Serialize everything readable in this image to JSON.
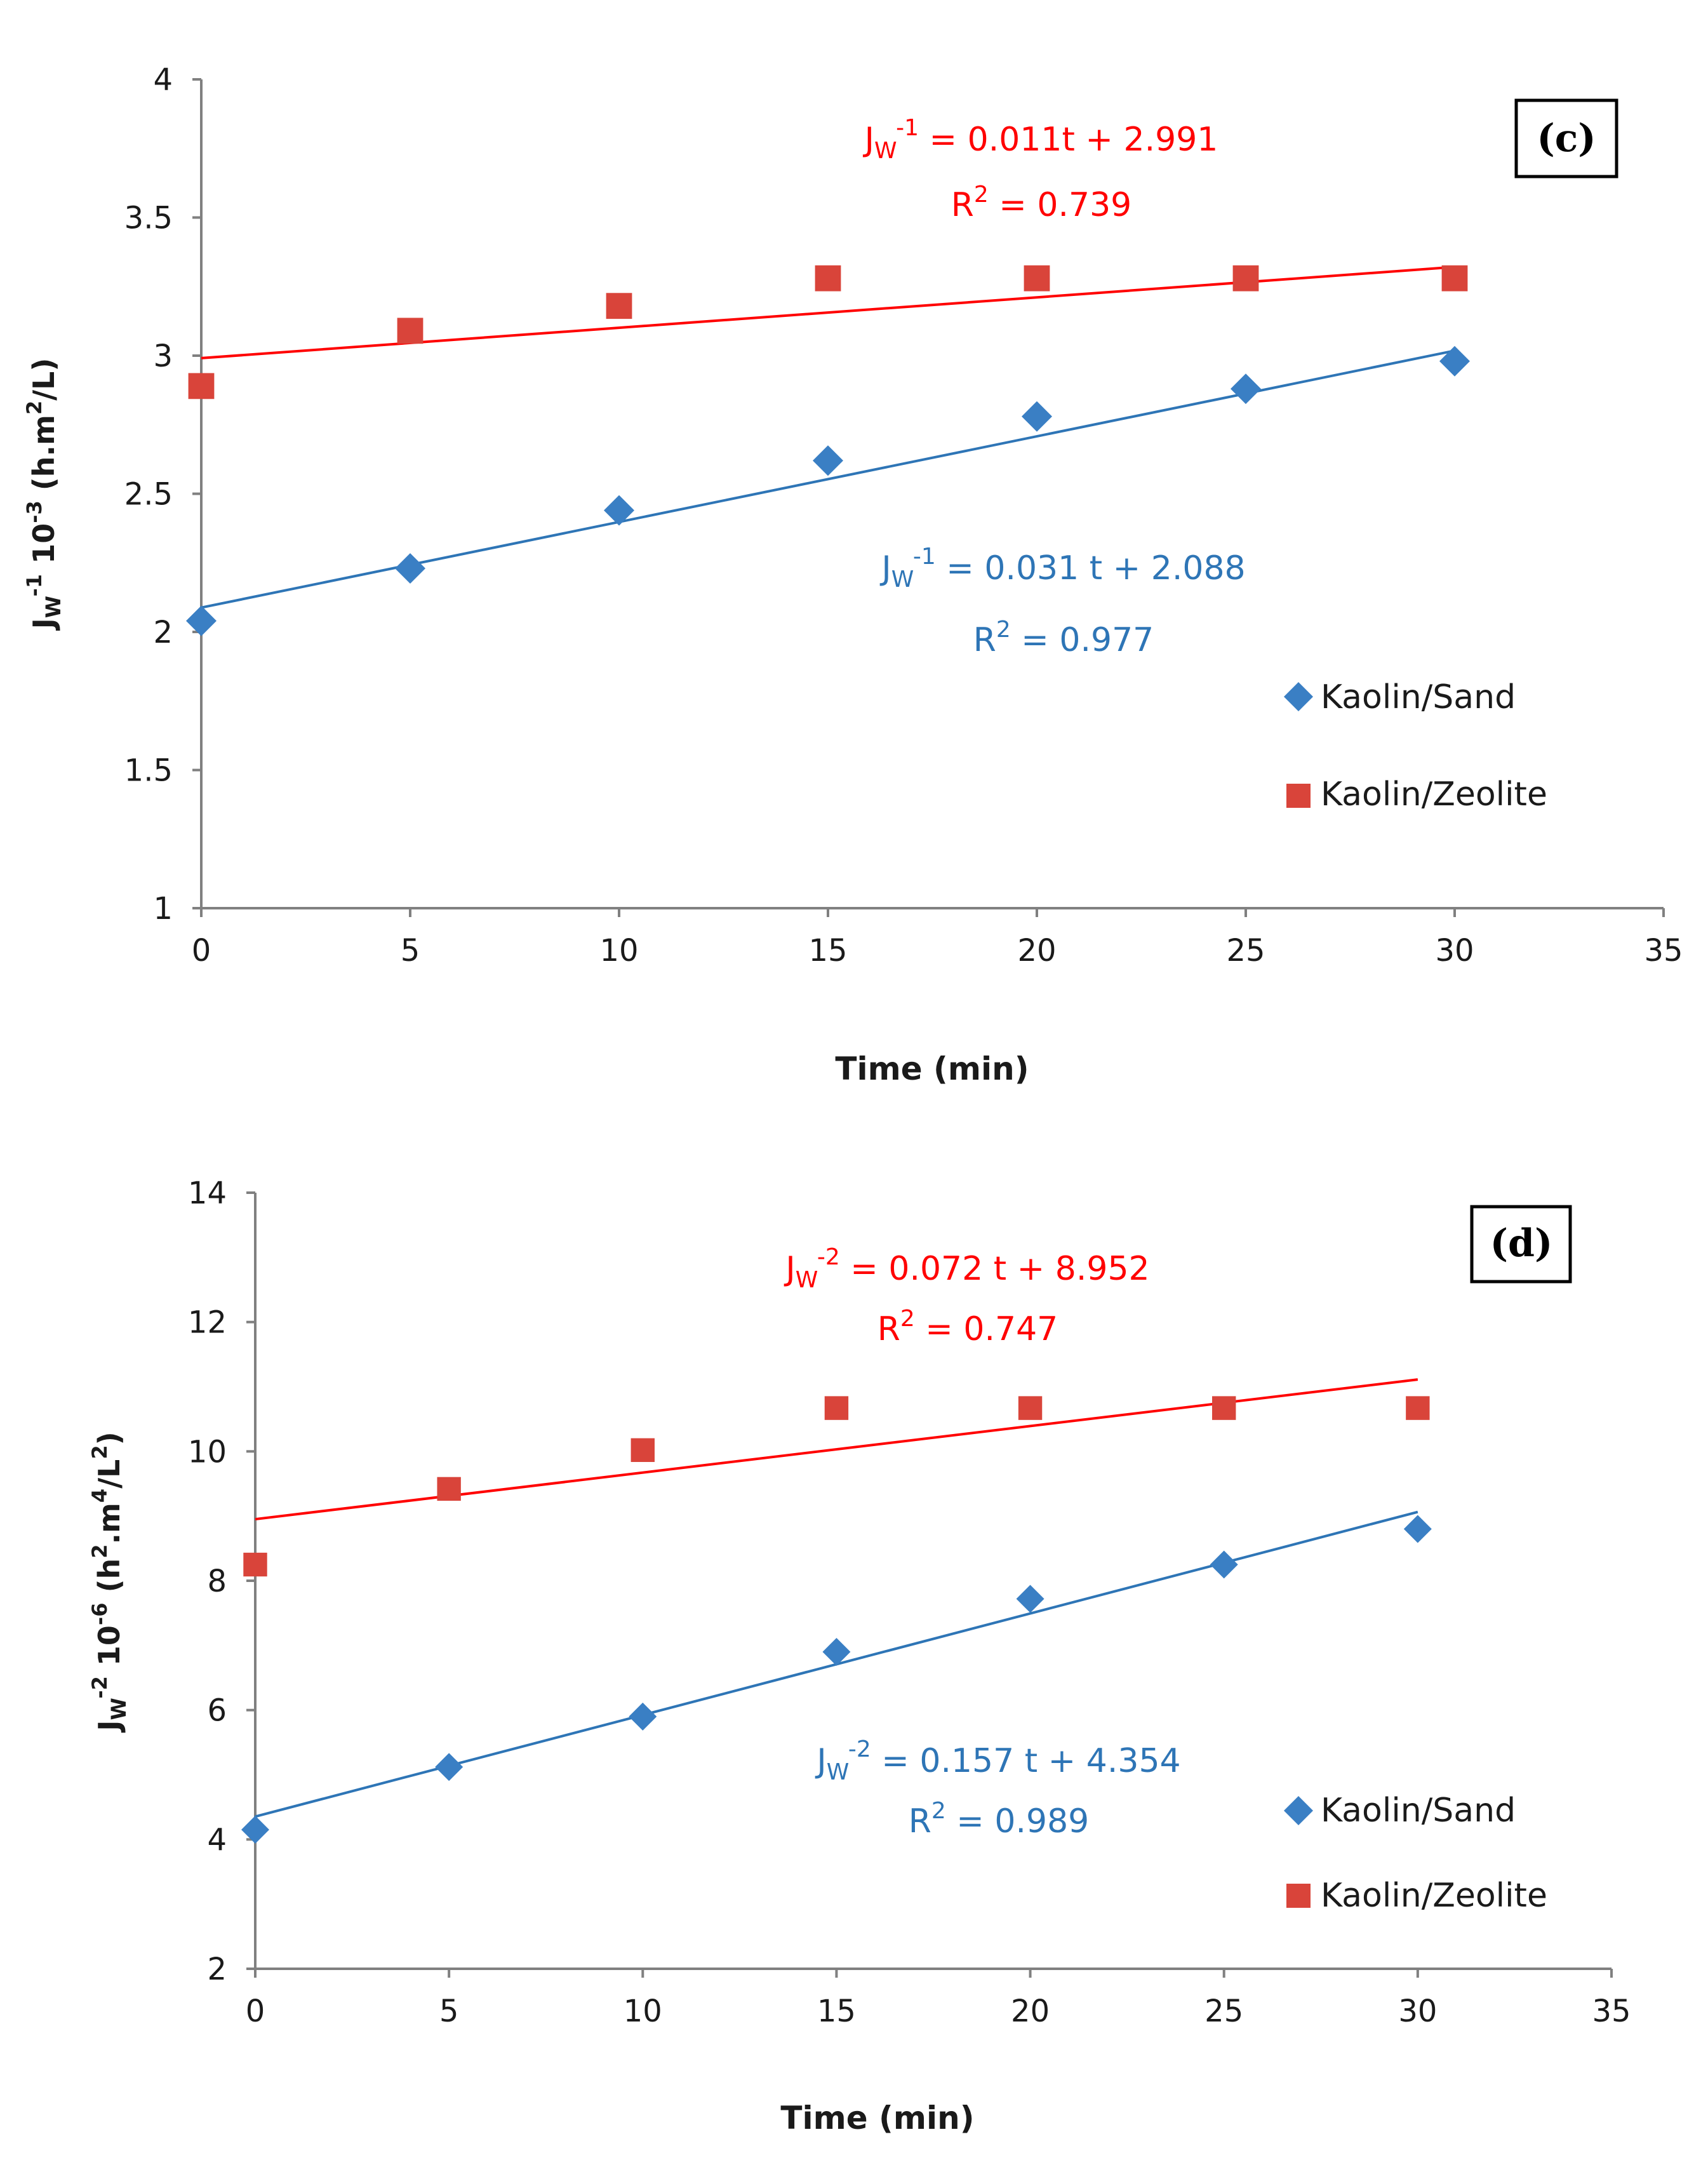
{
  "colors": {
    "sand": "#2E75B6",
    "sand_marker": "#3A7FC4",
    "zeolite": "#FF0000",
    "zeolite_marker": "#D9443A",
    "axis": "#808080",
    "text": "#1a1a1a"
  },
  "chart_data": [
    {
      "type": "scatter",
      "panel_label": "(c)",
      "xlabel": "Time (min)",
      "ylabel": {
        "a": "J",
        "a_sub": "W",
        "b": "-1",
        "c": " 10",
        "d": "-3",
        "e": " (h.m",
        "f": "2",
        "g": "/L)"
      },
      "xlim": [
        0,
        35
      ],
      "ylim": [
        1,
        4
      ],
      "xticks": [
        "0",
        "5",
        "10",
        "15",
        "20",
        "25",
        "30",
        "35"
      ],
      "yticks": [
        "1",
        "1.5",
        "2",
        "2.5",
        "3",
        "3.5",
        "4"
      ],
      "series": [
        {
          "name": "Kaolin/Sand",
          "marker": "diamond",
          "x": [
            0,
            5,
            10,
            15,
            20,
            25,
            30
          ],
          "y": [
            2.04,
            2.23,
            2.44,
            2.62,
            2.78,
            2.88,
            2.98
          ],
          "fit": {
            "slope": 0.031,
            "intercept": 2.088
          },
          "equation": {
            "a": "J",
            "a_sub": "W",
            "sup": "-1",
            "rest": " = 0.031 t + 2.088"
          },
          "r2": {
            "a": "R",
            "sup": "2",
            "rest": " = 0.977"
          }
        },
        {
          "name": "Kaolin/Zeolite",
          "marker": "square",
          "x": [
            0,
            5,
            10,
            15,
            20,
            25,
            30
          ],
          "y": [
            2.89,
            3.09,
            3.18,
            3.28,
            3.28,
            3.28,
            3.28
          ],
          "fit": {
            "slope": 0.011,
            "intercept": 2.991
          },
          "equation": {
            "a": "J",
            "a_sub": "W",
            "sup": "-1",
            "rest": " = 0.011t + 2.991"
          },
          "r2": {
            "a": "R",
            "sup": "2",
            "rest": " = 0.739"
          }
        }
      ]
    },
    {
      "type": "scatter",
      "panel_label": "(d)",
      "xlabel": "Time (min)",
      "ylabel": {
        "a": "J",
        "a_sub": "W",
        "b": "-2",
        "c": " 10",
        "d": "-6",
        "e": " (h",
        "f": "2",
        "g": ".m",
        "h": "4",
        "i": "/L",
        "j": "2",
        "k": ")"
      },
      "xlim": [
        0,
        35
      ],
      "ylim": [
        2,
        14
      ],
      "xticks": [
        "0",
        "5",
        "10",
        "15",
        "20",
        "25",
        "30",
        "35"
      ],
      "yticks": [
        "2",
        "4",
        "6",
        "8",
        "10",
        "12",
        "14"
      ],
      "series": [
        {
          "name": "Kaolin/Sand",
          "marker": "diamond",
          "x": [
            0,
            5,
            10,
            15,
            20,
            25,
            30
          ],
          "y": [
            4.15,
            5.12,
            5.9,
            6.9,
            7.72,
            8.25,
            8.8
          ],
          "fit": {
            "slope": 0.157,
            "intercept": 4.354
          },
          "equation": {
            "a": "J",
            "a_sub": "W",
            "sup": "-2",
            "rest": " = 0.157 t + 4.354"
          },
          "r2": {
            "a": "R",
            "sup": "2",
            "rest": " = 0.989"
          }
        },
        {
          "name": "Kaolin/Zeolite",
          "marker": "square",
          "x": [
            0,
            5,
            10,
            15,
            20,
            25,
            30
          ],
          "y": [
            8.25,
            9.42,
            10.02,
            10.67,
            10.67,
            10.67,
            10.67
          ],
          "fit": {
            "slope": 0.072,
            "intercept": 8.952
          },
          "equation": {
            "a": "J",
            "a_sub": "W",
            "sup": "-2",
            "rest": " = 0.072 t + 8.952"
          },
          "r2": {
            "a": "R",
            "sup": "2",
            "rest": " = 0.747"
          }
        }
      ]
    }
  ]
}
